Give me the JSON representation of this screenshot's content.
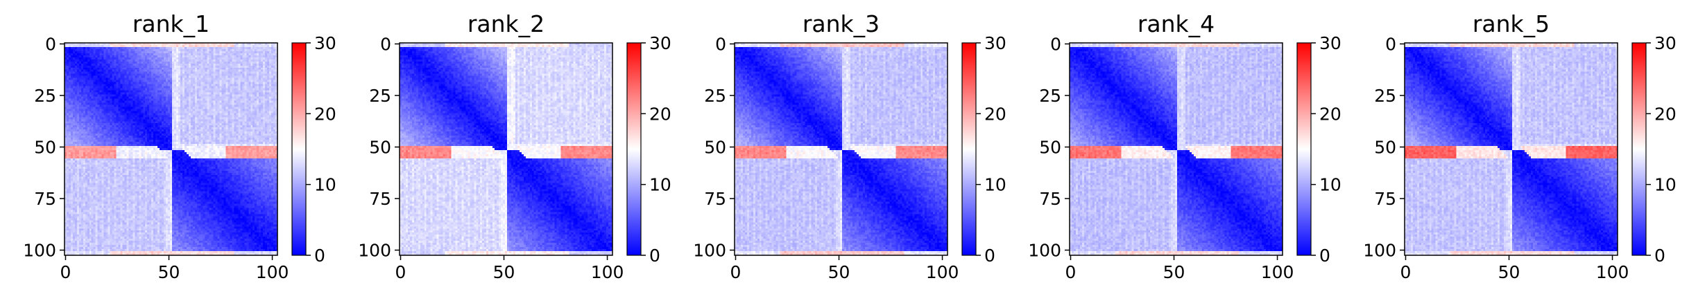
{
  "chart_data": [
    {
      "type": "heatmap",
      "title": "rank_1",
      "rows": 103,
      "cols": 103,
      "xticks": [
        0,
        50,
        100
      ],
      "yticks": [
        0,
        25,
        50,
        75,
        100
      ],
      "xlim": [
        0,
        102
      ],
      "ylim": [
        102,
        0
      ],
      "colorbar": {
        "ticks": [
          0,
          10,
          20,
          30
        ],
        "range": [
          0,
          30
        ],
        "colormap": "bwr"
      },
      "pattern": {
        "block_boundary": 52,
        "block1_mean": 6.2,
        "block2_mean": 4.9,
        "offblock_mean": 11.5,
        "diag_min": 0.0,
        "stripe_rows": [
          [
            50,
            55
          ]
        ],
        "stripe_value": 18.0,
        "edge_rows_value": 17.0
      }
    },
    {
      "type": "heatmap",
      "title": "rank_2",
      "rows": 103,
      "cols": 103,
      "xticks": [
        0,
        50,
        100
      ],
      "yticks": [
        0,
        25,
        50,
        75,
        100
      ],
      "xlim": [
        0,
        102
      ],
      "ylim": [
        102,
        0
      ],
      "colorbar": {
        "ticks": [
          0,
          10,
          20,
          30
        ],
        "range": [
          0,
          30
        ],
        "colormap": "bwr"
      },
      "pattern": {
        "block_boundary": 52,
        "block1_mean": 6.5,
        "block2_mean": 5.2,
        "offblock_mean": 12.5,
        "diag_min": 0.0,
        "stripe_rows": [
          [
            50,
            55
          ]
        ],
        "stripe_value": 19.0,
        "edge_rows_value": 16.0
      }
    },
    {
      "type": "heatmap",
      "title": "rank_3",
      "rows": 103,
      "cols": 103,
      "xticks": [
        0,
        50,
        100
      ],
      "yticks": [
        0,
        25,
        50,
        75,
        100
      ],
      "xlim": [
        0,
        102
      ],
      "ylim": [
        102,
        0
      ],
      "colorbar": {
        "ticks": [
          0,
          10,
          20,
          30
        ],
        "range": [
          0,
          30
        ],
        "colormap": "bwr"
      },
      "pattern": {
        "block_boundary": 52,
        "block1_mean": 6.4,
        "block2_mean": 5.0,
        "offblock_mean": 11.2,
        "diag_min": 0.0,
        "stripe_rows": [
          [
            50,
            55
          ]
        ],
        "stripe_value": 19.0,
        "edge_rows_value": 18.0
      }
    },
    {
      "type": "heatmap",
      "title": "rank_4",
      "rows": 103,
      "cols": 103,
      "xticks": [
        0,
        50,
        100
      ],
      "yticks": [
        0,
        25,
        50,
        75,
        100
      ],
      "xlim": [
        0,
        102
      ],
      "ylim": [
        102,
        0
      ],
      "colorbar": {
        "ticks": [
          0,
          10,
          20,
          30
        ],
        "range": [
          0,
          30
        ],
        "colormap": "bwr"
      },
      "pattern": {
        "block_boundary": 52,
        "block1_mean": 6.0,
        "block2_mean": 4.8,
        "offblock_mean": 11.0,
        "diag_min": 0.0,
        "stripe_rows": [
          [
            50,
            55
          ]
        ],
        "stripe_value": 20.0,
        "edge_rows_value": 17.0
      }
    },
    {
      "type": "heatmap",
      "title": "rank_5",
      "rows": 103,
      "cols": 103,
      "xticks": [
        0,
        50,
        100
      ],
      "yticks": [
        0,
        25,
        50,
        75,
        100
      ],
      "xlim": [
        0,
        102
      ],
      "ylim": [
        102,
        0
      ],
      "colorbar": {
        "ticks": [
          0,
          10,
          20,
          30
        ],
        "range": [
          0,
          30
        ],
        "colormap": "bwr"
      },
      "pattern": {
        "block_boundary": 52,
        "block1_mean": 6.3,
        "block2_mean": 5.0,
        "offblock_mean": 11.3,
        "diag_min": 0.0,
        "stripe_rows": [
          [
            50,
            55
          ]
        ],
        "stripe_value": 21.0,
        "edge_rows_value": 17.0
      }
    }
  ]
}
